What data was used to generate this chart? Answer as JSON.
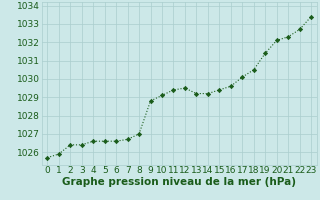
{
  "x": [
    0,
    1,
    2,
    3,
    4,
    5,
    6,
    7,
    8,
    9,
    10,
    11,
    12,
    13,
    14,
    15,
    16,
    17,
    18,
    19,
    20,
    21,
    22,
    23
  ],
  "y": [
    1025.7,
    1025.9,
    1026.4,
    1026.4,
    1026.6,
    1026.6,
    1026.6,
    1026.7,
    1027.0,
    1028.8,
    1029.1,
    1029.4,
    1029.5,
    1029.2,
    1029.2,
    1029.4,
    1029.6,
    1030.1,
    1030.5,
    1031.4,
    1032.1,
    1032.3,
    1032.7,
    1033.4
  ],
  "ylim": [
    1025.3,
    1034.2
  ],
  "yticks": [
    1026,
    1027,
    1028,
    1029,
    1030,
    1031,
    1032,
    1033,
    1034
  ],
  "xlabel": "Graphe pression niveau de la mer (hPa)",
  "line_color": "#1a5c1a",
  "marker_color": "#1a5c1a",
  "bg_color": "#cce8e8",
  "grid_color": "#aacece",
  "tick_label_color": "#1a5c1a",
  "xlabel_color": "#1a5c1a",
  "xlabel_fontsize": 7.5,
  "tick_fontsize": 6.5
}
